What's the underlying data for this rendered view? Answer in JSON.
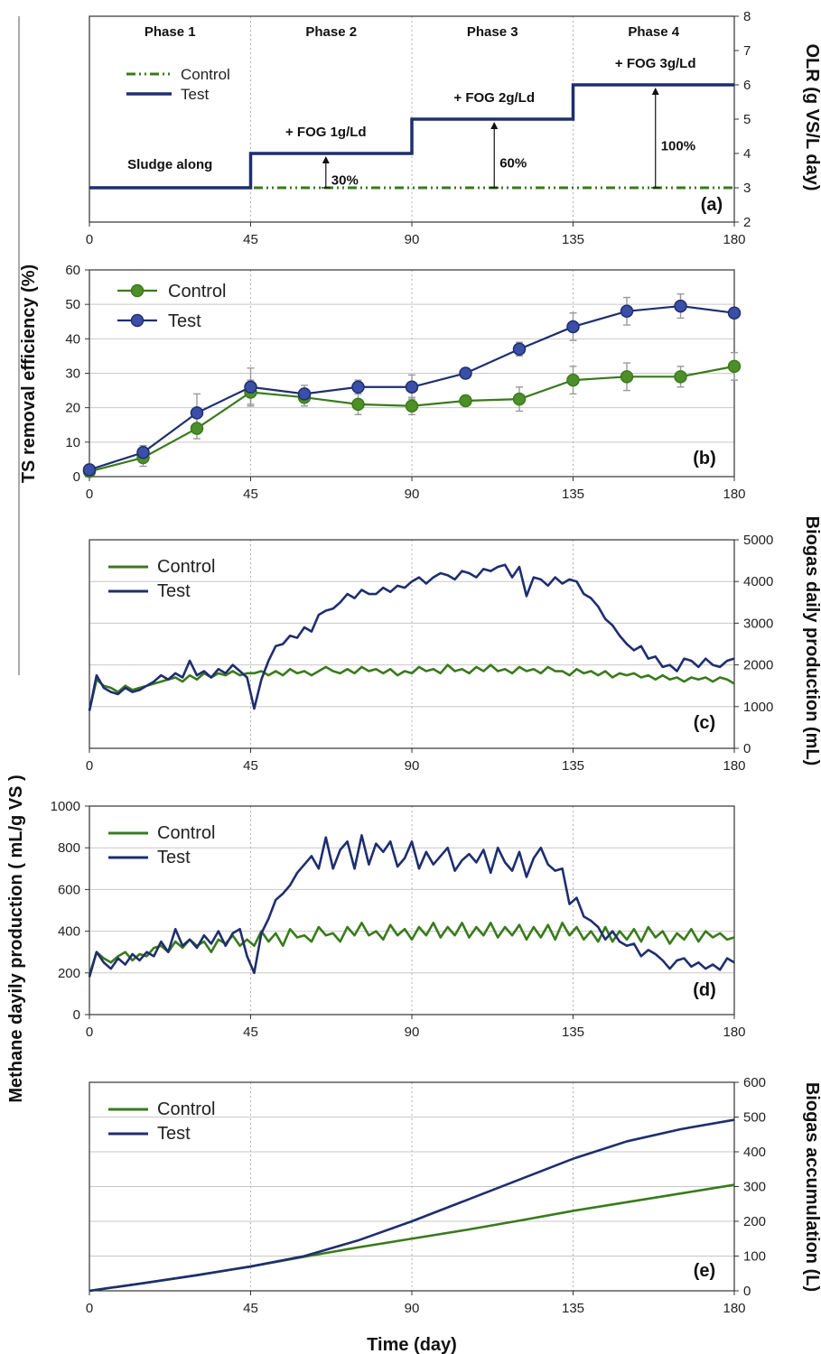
{
  "chart_data": [
    {
      "panel": "(a)",
      "type": "line",
      "xlabel": "",
      "ylabel": "OLR (g VS/L day)",
      "xlim": [
        0,
        180
      ],
      "ylim": [
        2,
        8
      ],
      "x_ticks": [
        "0",
        "45",
        "90",
        "135",
        "180"
      ],
      "y_ticks": [
        "2",
        "3",
        "4",
        "5",
        "6",
        "7",
        "8"
      ],
      "phases": [
        "Phase 1",
        "Phase 2",
        "Phase 3",
        "Phase 4"
      ],
      "series": [
        {
          "name": "Control",
          "color": "#3a7a1c",
          "dash": true,
          "x": [
            0,
            180
          ],
          "y": [
            3,
            3
          ]
        },
        {
          "name": "Test",
          "color": "#1f2e6f",
          "x": [
            0,
            45,
            45,
            90,
            90,
            135,
            135,
            180
          ],
          "y": [
            3,
            3,
            4,
            4,
            5,
            5,
            6,
            6
          ]
        }
      ],
      "annotations": [
        {
          "text": "Sludge along",
          "x": 22.5,
          "y": 3.55
        },
        {
          "text": "+ FOG 1g/Ld",
          "x": 66,
          "y": 4.5
        },
        {
          "text": "+ FOG 2g/Ld",
          "x": 113,
          "y": 5.5
        },
        {
          "text": "+ FOG 3g/Ld",
          "x": 158,
          "y": 6.5
        }
      ],
      "arrows": [
        {
          "x": 66,
          "text": "30%",
          "y_from": 3,
          "y_to": 4
        },
        {
          "x": 113,
          "text": "60%",
          "y_from": 3,
          "y_to": 5
        },
        {
          "x": 158,
          "text": "100%",
          "y_from": 3,
          "y_to": 6
        }
      ]
    },
    {
      "panel": "(b)",
      "type": "line",
      "xlabel": "",
      "ylabel": "TS removal efficiency (%)",
      "xlim": [
        0,
        180
      ],
      "ylim": [
        0,
        60
      ],
      "x_ticks": [
        "0",
        "45",
        "90",
        "135",
        "180"
      ],
      "y_ticks": [
        "0",
        "10",
        "20",
        "30",
        "40",
        "50",
        "60"
      ],
      "x": [
        0,
        15,
        30,
        45,
        60,
        75,
        90,
        105,
        120,
        135,
        150,
        165,
        180
      ],
      "series": [
        {
          "name": "Control",
          "color": "#3a7a1c",
          "y": [
            1.5,
            5.5,
            14,
            24.5,
            23,
            21,
            20.5,
            22,
            22.5,
            28,
            29,
            29,
            32
          ],
          "err": [
            1.5,
            2.5,
            3,
            3.5,
            2.5,
            3,
            2.5,
            1.5,
            3.5,
            4,
            4,
            3,
            4
          ]
        },
        {
          "name": "Test",
          "color": "#1f2e6f",
          "y": [
            2,
            7,
            18.5,
            26,
            24,
            26,
            26,
            30,
            37,
            43.5,
            48,
            49.5,
            47.5
          ],
          "err": [
            1.5,
            2,
            5.5,
            5.5,
            2.5,
            2,
            3.5,
            1.5,
            2,
            4,
            4,
            3.5,
            1
          ]
        }
      ]
    },
    {
      "panel": "(c)",
      "type": "line",
      "xlabel": "",
      "ylabel": "Biogas daily production (mL)",
      "xlim": [
        0,
        180
      ],
      "ylim": [
        0,
        5000
      ],
      "x_ticks": [
        "0",
        "45",
        "90",
        "135",
        "180"
      ],
      "y_ticks": [
        "0",
        "1000",
        "2000",
        "3000",
        "4000",
        "5000"
      ],
      "series": [
        {
          "name": "Control",
          "color": "#3a7a1c",
          "x": [
            0,
            2,
            4,
            6,
            8,
            10,
            12,
            14,
            16,
            18,
            20,
            22,
            24,
            26,
            28,
            30,
            32,
            34,
            36,
            38,
            40,
            42,
            44,
            46,
            48,
            50,
            52,
            54,
            56,
            58,
            60,
            62,
            64,
            66,
            68,
            70,
            72,
            74,
            76,
            78,
            80,
            82,
            84,
            86,
            88,
            90,
            92,
            94,
            96,
            98,
            100,
            102,
            104,
            106,
            108,
            110,
            112,
            114,
            116,
            118,
            120,
            122,
            124,
            126,
            128,
            130,
            132,
            134,
            136,
            138,
            140,
            142,
            144,
            146,
            148,
            150,
            152,
            154,
            156,
            158,
            160,
            162,
            164,
            166,
            168,
            170,
            172,
            174,
            176,
            178,
            180
          ],
          "y": [
            900,
            1650,
            1500,
            1450,
            1350,
            1500,
            1400,
            1450,
            1500,
            1550,
            1600,
            1650,
            1700,
            1600,
            1750,
            1650,
            1800,
            1700,
            1800,
            1750,
            1850,
            1750,
            1800,
            1800,
            1850,
            1750,
            1850,
            1750,
            1900,
            1800,
            1850,
            1750,
            1850,
            1950,
            1850,
            1800,
            1900,
            1800,
            1950,
            1850,
            1900,
            1800,
            1900,
            1750,
            1850,
            1800,
            1950,
            1850,
            1900,
            1800,
            2000,
            1850,
            1900,
            1800,
            1950,
            1850,
            2000,
            1850,
            1900,
            1800,
            1950,
            1850,
            1900,
            1800,
            1950,
            1850,
            1850,
            1750,
            1900,
            1800,
            1850,
            1750,
            1850,
            1700,
            1800,
            1750,
            1800,
            1700,
            1750,
            1650,
            1750,
            1650,
            1700,
            1600,
            1700,
            1650,
            1700,
            1600,
            1700,
            1650,
            1550
          ]
        },
        {
          "name": "Test",
          "color": "#1f2e6f",
          "x": [
            0,
            2,
            4,
            6,
            8,
            10,
            12,
            14,
            16,
            18,
            20,
            22,
            24,
            26,
            28,
            30,
            32,
            34,
            36,
            38,
            40,
            42,
            44,
            46,
            48,
            50,
            52,
            54,
            56,
            58,
            60,
            62,
            64,
            66,
            68,
            70,
            72,
            74,
            76,
            78,
            80,
            82,
            84,
            86,
            88,
            90,
            92,
            94,
            96,
            98,
            100,
            102,
            104,
            106,
            108,
            110,
            112,
            114,
            116,
            118,
            120,
            122,
            124,
            126,
            128,
            130,
            132,
            134,
            136,
            138,
            140,
            142,
            144,
            146,
            148,
            150,
            152,
            154,
            156,
            158,
            160,
            162,
            164,
            166,
            168,
            170,
            172,
            174,
            176,
            178,
            180
          ],
          "y": [
            900,
            1750,
            1450,
            1350,
            1300,
            1450,
            1350,
            1400,
            1500,
            1600,
            1750,
            1650,
            1800,
            1700,
            2100,
            1750,
            1850,
            1700,
            1900,
            1800,
            2000,
            1850,
            1700,
            950,
            1650,
            2100,
            2450,
            2500,
            2700,
            2650,
            2900,
            2800,
            3200,
            3300,
            3350,
            3500,
            3700,
            3600,
            3800,
            3700,
            3700,
            3850,
            3750,
            3900,
            3850,
            4000,
            4100,
            3950,
            4100,
            4200,
            4150,
            4050,
            4250,
            4200,
            4100,
            4300,
            4250,
            4350,
            4400,
            4100,
            4350,
            3650,
            4100,
            4050,
            3900,
            4100,
            3950,
            4050,
            4000,
            3700,
            3600,
            3400,
            3100,
            2950,
            2700,
            2500,
            2350,
            2450,
            2150,
            2200,
            1950,
            2000,
            1850,
            2150,
            2100,
            1950,
            2150,
            2000,
            1950,
            2100,
            2150
          ]
        }
      ]
    },
    {
      "panel": "(d)",
      "type": "line",
      "xlabel": "",
      "ylabel": "Methane dayily production ( mL/g VS )",
      "xlim": [
        0,
        180
      ],
      "ylim": [
        0,
        1000
      ],
      "x_ticks": [
        "0",
        "45",
        "90",
        "135",
        "180"
      ],
      "y_ticks": [
        "0",
        "200",
        "400",
        "600",
        "800",
        "1000"
      ],
      "series": [
        {
          "name": "Control",
          "color": "#3a7a1c",
          "x": [
            0,
            2,
            4,
            6,
            8,
            10,
            12,
            14,
            16,
            18,
            20,
            22,
            24,
            26,
            28,
            30,
            32,
            34,
            36,
            38,
            40,
            42,
            44,
            46,
            48,
            50,
            52,
            54,
            56,
            58,
            60,
            62,
            64,
            66,
            68,
            70,
            72,
            74,
            76,
            78,
            80,
            82,
            84,
            86,
            88,
            90,
            92,
            94,
            96,
            98,
            100,
            102,
            104,
            106,
            108,
            110,
            112,
            114,
            116,
            118,
            120,
            122,
            124,
            126,
            128,
            130,
            132,
            134,
            136,
            138,
            140,
            142,
            144,
            146,
            148,
            150,
            152,
            154,
            156,
            158,
            160,
            162,
            164,
            166,
            168,
            170,
            172,
            174,
            176,
            178,
            180
          ],
          "y": [
            190,
            300,
            270,
            250,
            280,
            300,
            260,
            290,
            280,
            320,
            330,
            300,
            350,
            320,
            360,
            330,
            350,
            300,
            360,
            340,
            380,
            330,
            360,
            330,
            400,
            350,
            390,
            330,
            410,
            370,
            380,
            350,
            420,
            380,
            390,
            350,
            420,
            380,
            440,
            380,
            400,
            360,
            430,
            380,
            410,
            360,
            420,
            380,
            440,
            370,
            420,
            380,
            440,
            370,
            420,
            380,
            440,
            370,
            420,
            380,
            430,
            360,
            420,
            370,
            430,
            360,
            440,
            380,
            420,
            360,
            400,
            350,
            420,
            350,
            400,
            360,
            410,
            350,
            420,
            370,
            400,
            340,
            390,
            360,
            410,
            350,
            400,
            370,
            390,
            360,
            370
          ]
        },
        {
          "name": "Test",
          "color": "#1f2e6f",
          "x": [
            0,
            2,
            4,
            6,
            8,
            10,
            12,
            14,
            16,
            18,
            20,
            22,
            24,
            26,
            28,
            30,
            32,
            34,
            36,
            38,
            40,
            42,
            44,
            46,
            48,
            50,
            52,
            54,
            56,
            58,
            60,
            62,
            64,
            66,
            68,
            70,
            72,
            74,
            76,
            78,
            80,
            82,
            84,
            86,
            88,
            90,
            92,
            94,
            96,
            98,
            100,
            102,
            104,
            106,
            108,
            110,
            112,
            114,
            116,
            118,
            120,
            122,
            124,
            126,
            128,
            130,
            132,
            134,
            136,
            138,
            140,
            142,
            144,
            146,
            148,
            150,
            152,
            154,
            156,
            158,
            160,
            162,
            164,
            166,
            168,
            170,
            172,
            174,
            176,
            178,
            180
          ],
          "y": [
            180,
            300,
            250,
            220,
            270,
            240,
            290,
            260,
            300,
            280,
            350,
            300,
            410,
            330,
            360,
            320,
            380,
            340,
            400,
            330,
            390,
            410,
            280,
            200,
            390,
            460,
            550,
            580,
            620,
            680,
            720,
            760,
            700,
            850,
            700,
            790,
            830,
            700,
            860,
            720,
            820,
            780,
            830,
            710,
            750,
            830,
            700,
            780,
            720,
            760,
            800,
            690,
            740,
            770,
            730,
            790,
            680,
            800,
            730,
            690,
            780,
            660,
            750,
            800,
            720,
            690,
            700,
            530,
            560,
            470,
            450,
            420,
            360,
            400,
            350,
            330,
            340,
            280,
            310,
            290,
            260,
            220,
            260,
            270,
            230,
            250,
            220,
            240,
            215,
            270,
            250
          ]
        }
      ]
    },
    {
      "panel": "(e)",
      "type": "line",
      "xlabel": "Time (day)",
      "ylabel": "Biogas accumulation (L)",
      "xlim": [
        0,
        180
      ],
      "ylim": [
        0,
        600
      ],
      "x_ticks": [
        "0",
        "45",
        "90",
        "135",
        "180"
      ],
      "y_ticks": [
        "0",
        "100",
        "200",
        "300",
        "400",
        "500",
        "600"
      ],
      "series": [
        {
          "name": "Control",
          "color": "#3a7a1c",
          "x": [
            0,
            15,
            30,
            45,
            60,
            75,
            90,
            105,
            120,
            135,
            150,
            165,
            180
          ],
          "y": [
            0,
            22,
            45,
            70,
            98,
            125,
            150,
            175,
            202,
            230,
            255,
            280,
            305
          ]
        },
        {
          "name": "Test",
          "color": "#1f2e6f",
          "x": [
            0,
            15,
            30,
            45,
            60,
            75,
            90,
            105,
            120,
            135,
            150,
            165,
            180
          ],
          "y": [
            0,
            22,
            45,
            70,
            100,
            145,
            200,
            260,
            320,
            380,
            430,
            465,
            492
          ]
        }
      ]
    }
  ]
}
